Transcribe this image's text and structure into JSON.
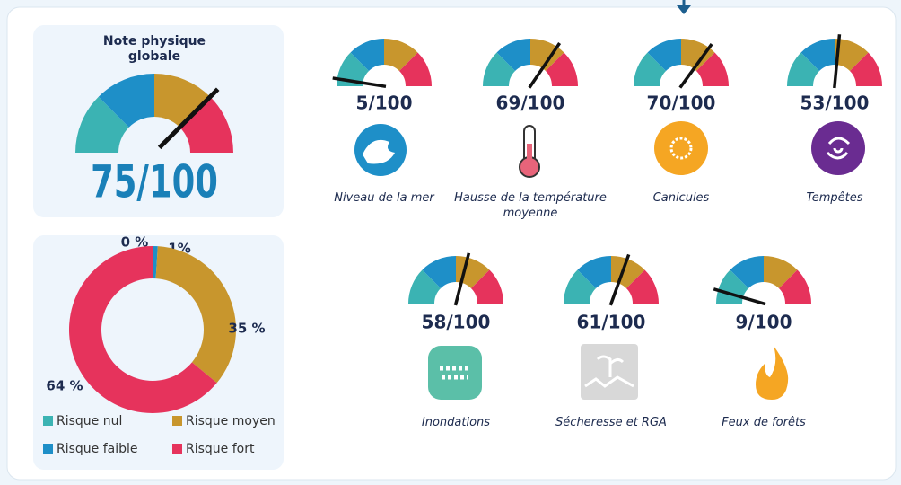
{
  "chart_data": [
    {
      "type": "gauge",
      "title": "Note physique globale",
      "categories": [
        null
      ],
      "values": [
        75
      ],
      "value_labels": [
        "75/100"
      ],
      "ylim": [
        0,
        100
      ],
      "colors": [
        "#3bb3b3",
        "#1e8fc8",
        "#c8962d",
        "#e6335c"
      ]
    },
    {
      "type": "gauge",
      "categories": [
        "Niveau de la mer",
        "Hausse de la température moyenne",
        "Canicules",
        "Tempêtes",
        "Inondations",
        "Sécheresse et RGA",
        "Feux de forêts"
      ],
      "values": [
        5,
        69,
        70,
        53,
        58,
        61,
        9
      ],
      "value_labels": [
        "5/100",
        "69/100",
        "70/100",
        "53/100",
        "58/100",
        "61/100",
        "9/100"
      ],
      "ylim": [
        0,
        100
      ],
      "colors": [
        "#3bb3b3",
        "#1e8fc8",
        "#c8962d",
        "#e6335c"
      ]
    },
    {
      "type": "pie",
      "categories": [
        "Risque nul",
        "Risque faible",
        "Risque moyen",
        "Risque fort"
      ],
      "values": [
        0,
        1,
        35,
        64
      ],
      "value_labels": [
        "0 %",
        "1%",
        "35 %",
        "64 %"
      ],
      "colors": [
        "#3bb3b3",
        "#1e8fc8",
        "#c8962d",
        "#e6335c"
      ],
      "donut": true
    }
  ]
}
